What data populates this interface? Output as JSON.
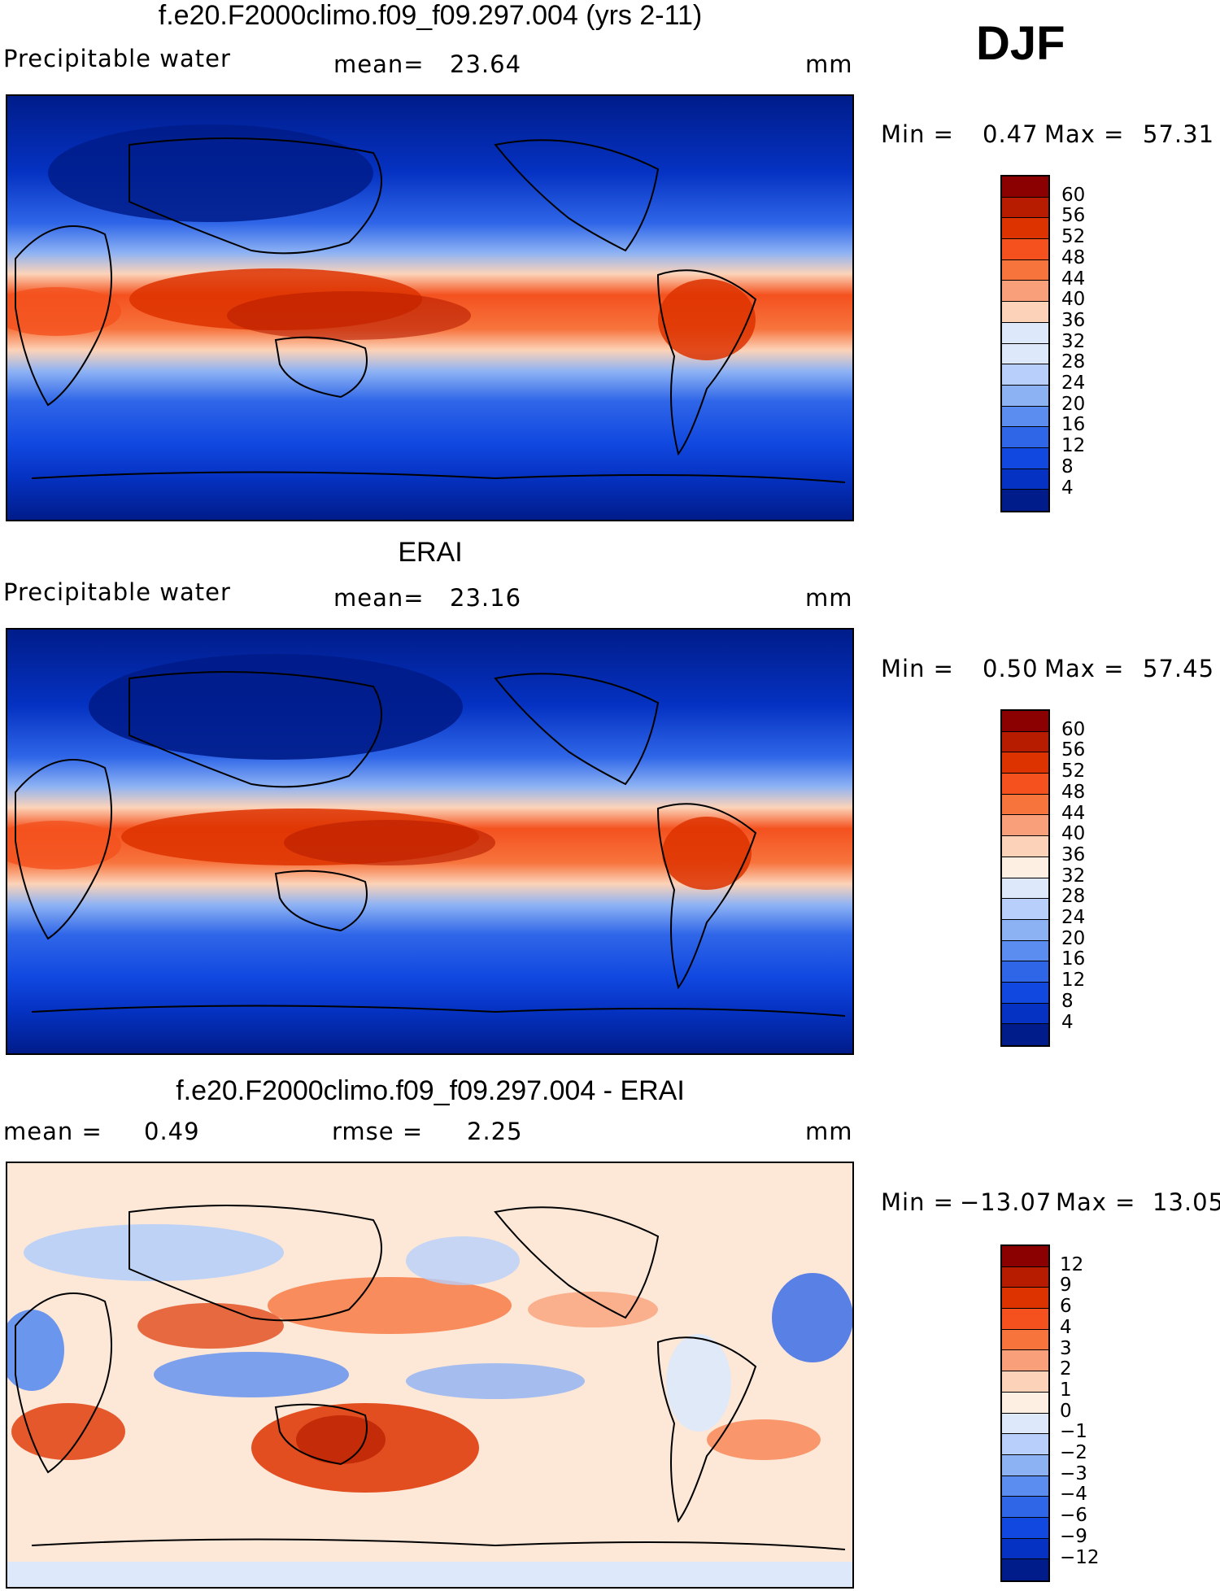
{
  "season": "DJF",
  "panels": [
    {
      "title": "f.e20.F2000climo.f09_f09.297.004 (yrs 2-11)",
      "left_label": "Precipitable water",
      "mid_label": "mean=",
      "mid_value": "23.64",
      "units": "mm",
      "min_label": "Min =",
      "min_value": "0.47",
      "max_label": "Max =",
      "max_value": "57.31",
      "colorbar_labels": [
        "60",
        "56",
        "52",
        "48",
        "44",
        "40",
        "36",
        "32",
        "28",
        "24",
        "20",
        "16",
        "12",
        "8",
        "4"
      ],
      "colors": [
        "#8b0000",
        "#b81c00",
        "#dd3300",
        "#f4511e",
        "#f7743d",
        "#f9a07a",
        "#fcd3b8",
        "#dde9fb",
        "#b7cffa",
        "#8db2f4",
        "#5b8df0",
        "#2f66e8",
        "#1148e0",
        "#0532c2",
        "#001c8a"
      ]
    },
    {
      "title": "ERAI",
      "left_label": "Precipitable water",
      "mid_label": "mean=",
      "mid_value": "23.16",
      "units": "mm",
      "min_label": "Min =",
      "min_value": "0.50",
      "max_label": "Max =",
      "max_value": "57.45",
      "colorbar_labels": [
        "60",
        "56",
        "52",
        "48",
        "44",
        "40",
        "36",
        "32",
        "28",
        "24",
        "20",
        "16",
        "12",
        "8",
        "4"
      ],
      "colors": [
        "#8b0000",
        "#b81c00",
        "#dd3300",
        "#f4511e",
        "#f7743d",
        "#f9a07a",
        "#fcd3b8",
        "#fdf0e2",
        "#dde9fb",
        "#b7cffa",
        "#8db2f4",
        "#5b8df0",
        "#2f66e8",
        "#1148e0",
        "#0532c2",
        "#001c8a"
      ]
    },
    {
      "title": "f.e20.F2000climo.f09_f09.297.004 - ERAI",
      "left_label": "mean =",
      "left_value": "0.49",
      "mid_label": "rmse =",
      "mid_value": "2.25",
      "units": "mm",
      "min_label": "Min =",
      "min_value": "−13.07",
      "max_label": "Max =",
      "max_value": "13.05",
      "colorbar_labels": [
        "12",
        "9",
        "6",
        "4",
        "3",
        "2",
        "1",
        "0",
        "−1",
        "−2",
        "−3",
        "−4",
        "−6",
        "−9",
        "−12"
      ],
      "colors": [
        "#8b0000",
        "#b81c00",
        "#dd3300",
        "#f4511e",
        "#f7743d",
        "#f9a07a",
        "#fcd3b8",
        "#fdf0e2",
        "#dde9fb",
        "#b7cffa",
        "#8db2f4",
        "#5b8df0",
        "#2f66e8",
        "#1148e0",
        "#0532c2",
        "#001c8a"
      ]
    }
  ]
}
